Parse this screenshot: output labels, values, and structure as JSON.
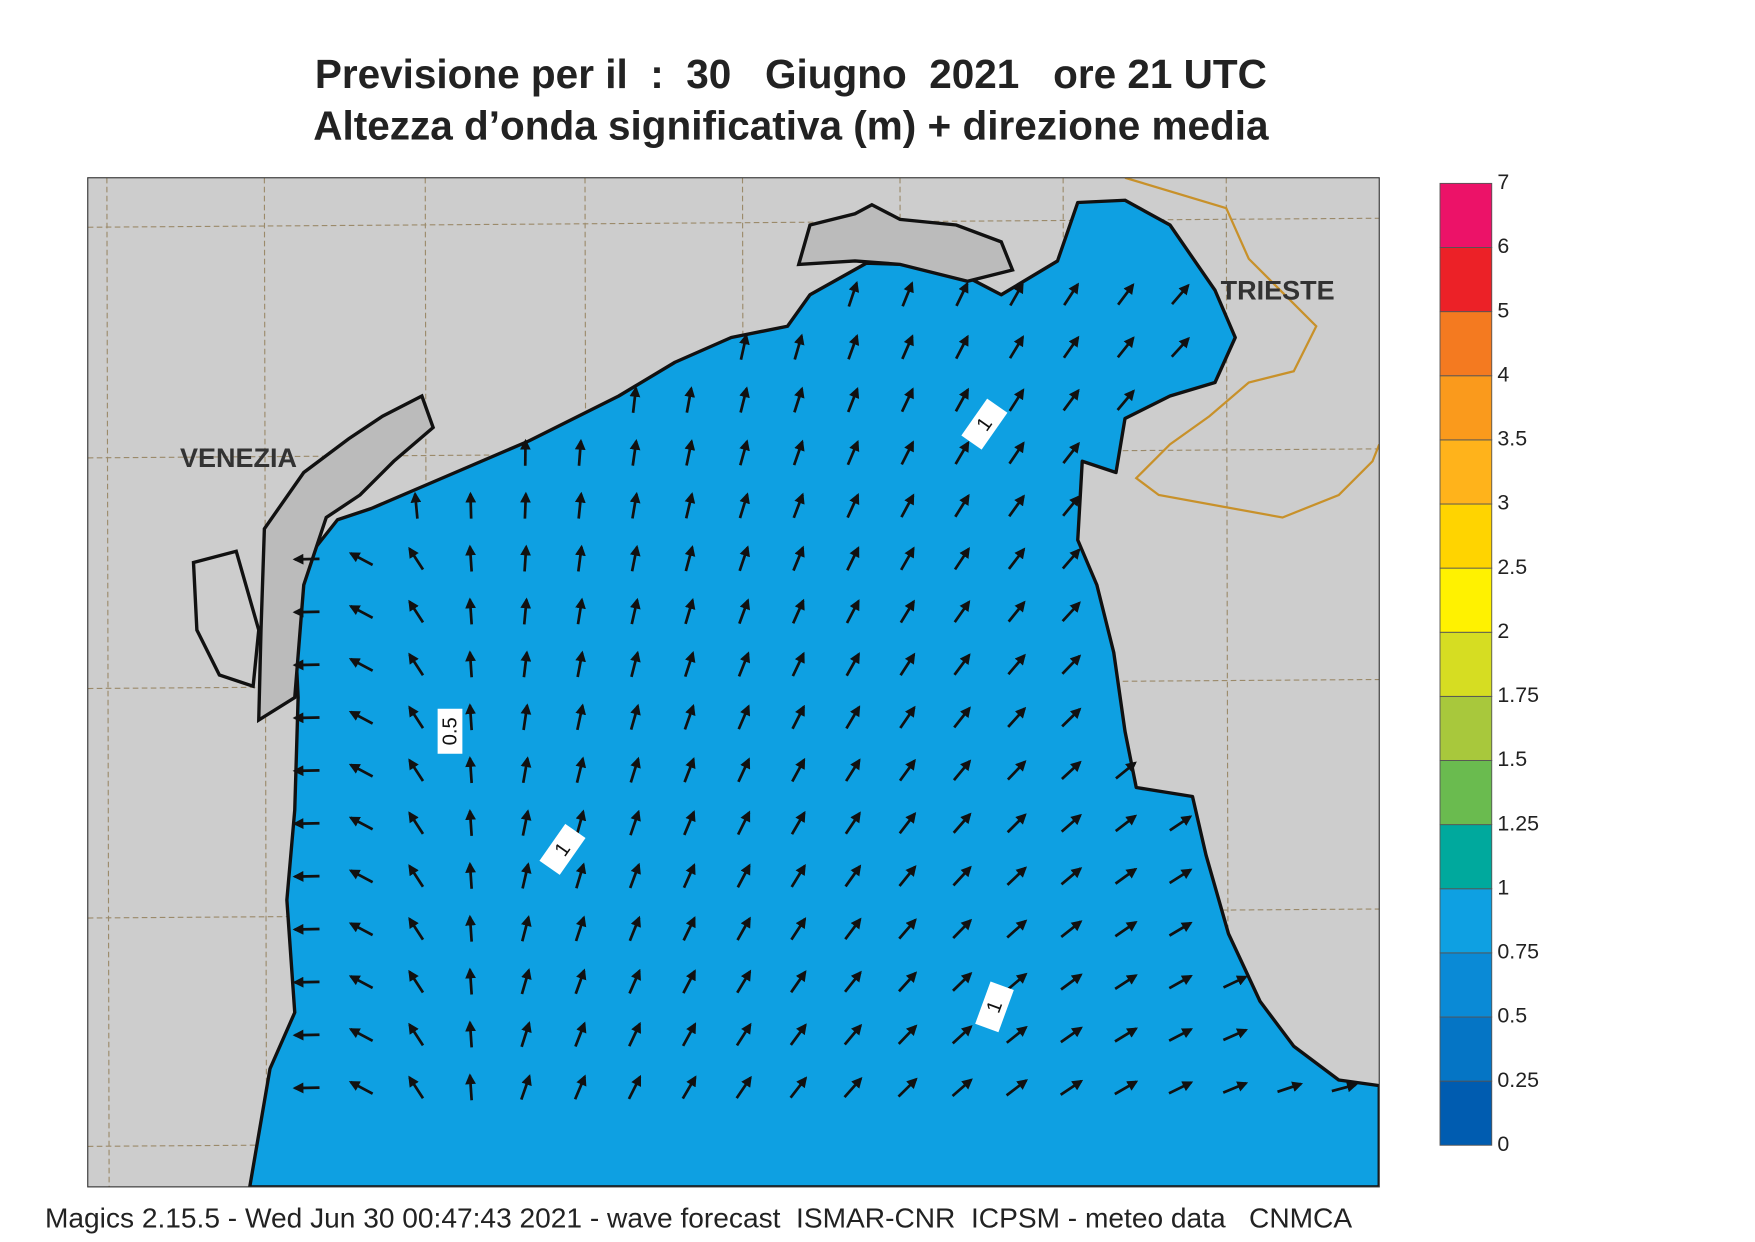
{
  "header": {
    "title": "Previsione per il  :  30   Giugno  2021   ore 21 UTC",
    "subtitle": "Altezza d’onda significativa (m) + direzione media"
  },
  "map": {
    "places": [
      "VENEZIA",
      "TRIESTE"
    ],
    "contour_labels": [
      "1",
      "0.5",
      "1",
      "1"
    ]
  },
  "legend": {
    "levels": [
      0,
      0.25,
      0.5,
      0.75,
      1,
      1.25,
      1.5,
      1.75,
      2,
      2.5,
      3,
      3.5,
      4,
      5,
      6,
      7
    ],
    "colors": [
      "#005cb0",
      "#0575c5",
      "#0a8ad6",
      "#0ea0e2",
      "#00a99d",
      "#6abb4f",
      "#a8c83c",
      "#d6dd22",
      "#fff200",
      "#ffd400",
      "#ffb31b",
      "#fa9a1c",
      "#f47a20",
      "#ec2127",
      "#ec1268"
    ]
  },
  "footer": "Magics 2.15.5 - Wed Jun 30 00:47:43 2021 - wave forecast  ISMAR-CNR  ICPSM - meteo data   CNMCA"
}
